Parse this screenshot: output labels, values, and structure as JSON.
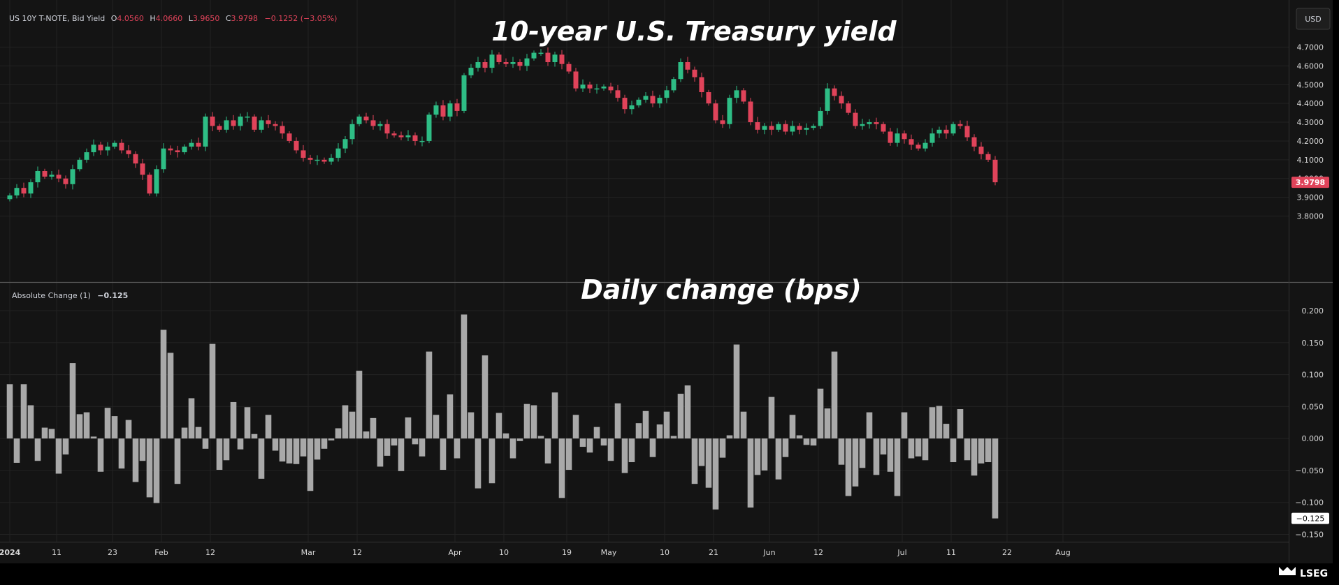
{
  "header": {
    "symbol": "US 10Y T-NOTE, Bid Yield",
    "o_label": "O",
    "o_value": "4.0560",
    "h_label": "H",
    "h_value": "4.0660",
    "l_label": "L",
    "l_value": "3.9650",
    "c_label": "C",
    "c_value": "3.9798",
    "change": "−0.1252 (−3.05%)"
  },
  "currency_button": "USD",
  "titles": {
    "top": "10-year U.S. Treasury yield",
    "bottom": "Daily change (bps)"
  },
  "indicator": {
    "label": "Absolute Change (1)",
    "value": "−0.125"
  },
  "price_tag": "3.9798",
  "change_tag": "−0.125",
  "logo_text": "LSEG",
  "colors": {
    "background": "#000000",
    "panel": "#141414",
    "grid": "#222222",
    "up": "#26a69a",
    "up_bright": "#2ebd85",
    "down": "#e0435a",
    "bar": "#a9a9a9",
    "text": "#d1d4dc",
    "axis_text": "#d9d9d9"
  },
  "chart_data": [
    {
      "type": "candlestick",
      "title": "10-year U.S. Treasury yield",
      "series_label": "US 10Y T-NOTE, Bid Yield",
      "ylim": [
        3.75,
        4.78
      ],
      "y_ticks": [
        "3.8000",
        "3.9000",
        "4.0000",
        "4.1000",
        "4.2000",
        "4.3000",
        "4.4000",
        "4.5000",
        "4.6000",
        "4.7000"
      ],
      "last_value": 3.9798,
      "x_ticks": [
        "2024",
        "11",
        "23",
        "Feb",
        "12",
        "Mar",
        "12",
        "Apr",
        "10",
        "19",
        "May",
        "10",
        "21",
        "Jun",
        "12",
        "Jul",
        "11",
        "22",
        "Aug"
      ],
      "closes": [
        3.91,
        3.95,
        3.92,
        3.98,
        4.04,
        4.01,
        4.02,
        4.0,
        3.97,
        4.05,
        4.1,
        4.14,
        4.18,
        4.15,
        4.17,
        4.19,
        4.15,
        4.13,
        4.08,
        4.02,
        3.92,
        4.05,
        4.16,
        4.15,
        4.14,
        4.17,
        4.19,
        4.17,
        4.33,
        4.28,
        4.26,
        4.31,
        4.28,
        4.33,
        4.33,
        4.26,
        4.31,
        4.29,
        4.28,
        4.24,
        4.2,
        4.15,
        4.11,
        4.1,
        4.1,
        4.09,
        4.11,
        4.16,
        4.21,
        4.29,
        4.33,
        4.31,
        4.28,
        4.29,
        4.24,
        4.23,
        4.22,
        4.23,
        4.2,
        4.2,
        4.34,
        4.39,
        4.33,
        4.4,
        4.36,
        4.55,
        4.59,
        4.62,
        4.59,
        4.66,
        4.62,
        4.61,
        4.62,
        4.6,
        4.64,
        4.67,
        4.67,
        4.62,
        4.66,
        4.61,
        4.57,
        4.48,
        4.5,
        4.48,
        4.48,
        4.49,
        4.47,
        4.43,
        4.37,
        4.39,
        4.42,
        4.44,
        4.4,
        4.43,
        4.47,
        4.53,
        4.62,
        4.58,
        4.54,
        4.46,
        4.4,
        4.31,
        4.29,
        4.43,
        4.47,
        4.41,
        4.3,
        4.26,
        4.28,
        4.26,
        4.29,
        4.25,
        4.28,
        4.26,
        4.27,
        4.28,
        4.36,
        4.48,
        4.44,
        4.4,
        4.35,
        4.28,
        4.29,
        4.3,
        4.29,
        4.25,
        4.19,
        4.24,
        4.21,
        4.18,
        4.16,
        4.19,
        4.24,
        4.26,
        4.24,
        4.29,
        4.28,
        4.22,
        4.17,
        4.13,
        4.1,
        3.98
      ]
    },
    {
      "type": "bar",
      "title": "Daily change (bps)",
      "series_label": "Absolute Change (1)",
      "ylim": [
        -0.15,
        0.215
      ],
      "y_ticks": [
        "0.200",
        "0.150",
        "0.100",
        "0.050",
        "0.000",
        "−0.050",
        "−0.100",
        "−0.150"
      ],
      "last_value": -0.125,
      "values": [
        0.085,
        -0.038,
        0.085,
        0.052,
        -0.035,
        0.017,
        0.015,
        -0.055,
        -0.025,
        0.118,
        0.038,
        0.041,
        0.003,
        -0.052,
        0.048,
        0.035,
        -0.047,
        0.029,
        -0.068,
        -0.035,
        -0.092,
        -0.101,
        0.17,
        0.134,
        -0.071,
        0.017,
        0.063,
        0.018,
        -0.016,
        0.148,
        -0.049,
        -0.034,
        0.057,
        -0.017,
        0.049,
        0.007,
        -0.063,
        0.037,
        -0.019,
        -0.036,
        -0.039,
        -0.04,
        -0.028,
        -0.082,
        -0.033,
        -0.016,
        -0.003,
        0.016,
        0.052,
        0.042,
        0.106,
        0.011,
        0.032,
        -0.044,
        -0.027,
        -0.011,
        -0.051,
        0.033,
        -0.009,
        -0.028,
        0.136,
        0.037,
        -0.049,
        0.069,
        -0.031,
        0.194,
        0.041,
        -0.078,
        0.13,
        -0.07,
        0.04,
        0.008,
        -0.031,
        -0.004,
        0.054,
        0.052,
        0.004,
        -0.039,
        0.072,
        -0.093,
        -0.049,
        0.037,
        -0.013,
        -0.022,
        0.018,
        -0.011,
        -0.035,
        0.055,
        -0.054,
        -0.037,
        0.024,
        0.043,
        -0.029,
        0.022,
        0.042,
        0.004,
        0.07,
        0.083,
        -0.071,
        -0.043,
        -0.077,
        -0.111,
        -0.03,
        0.005,
        0.147,
        0.042,
        -0.108,
        -0.057,
        -0.05,
        0.065,
        -0.064,
        -0.029,
        0.037,
        0.005,
        -0.01,
        -0.011,
        0.078,
        0.047,
        0.136,
        -0.041,
        -0.09,
        -0.075,
        -0.046,
        0.041,
        -0.057,
        -0.025,
        -0.052,
        -0.09,
        0.041,
        -0.031,
        -0.028,
        -0.034,
        0.049,
        0.051,
        0.023,
        -0.037,
        0.046,
        -0.034,
        -0.058,
        -0.039,
        -0.037,
        -0.125
      ]
    }
  ]
}
